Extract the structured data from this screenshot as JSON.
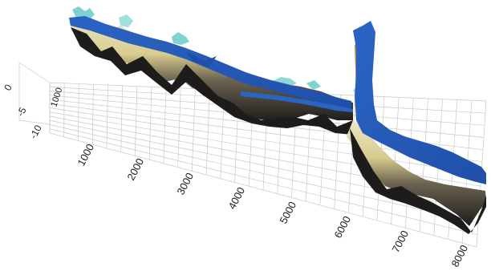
{
  "view": {
    "type": "3d-surface",
    "projection": "perspective"
  },
  "axes": {
    "x": {
      "ticks": [
        "1000",
        "2000",
        "3000",
        "4000",
        "5000",
        "6000",
        "7000",
        "8000"
      ]
    },
    "y": {
      "ticks": [
        "1000"
      ]
    },
    "z": {
      "ticks": [
        "0",
        "-5",
        "-10"
      ]
    }
  },
  "colors": {
    "background": "#ffffff",
    "grid": "#c9c9c9",
    "water_surface": "#1f4fa8",
    "water_highlight": "#2c64c4",
    "terrain_dark": "#1e1c1b",
    "terrain_light": "#d8cc8e",
    "terrain_pale": "#ece6c6",
    "terrain_tan": "#a58a58",
    "spike_cyan": "#7fd2d2",
    "tick_text": "#222222"
  },
  "layers": [
    {
      "name": "bathymetry",
      "color": "terrain_dark"
    },
    {
      "name": "water-surface",
      "color": "water_surface"
    }
  ]
}
